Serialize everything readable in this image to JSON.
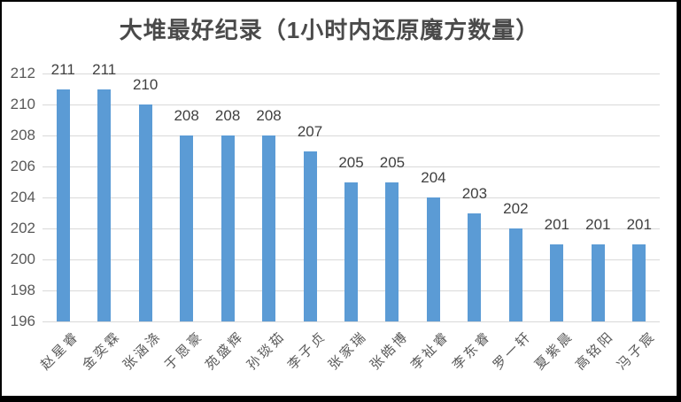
{
  "chart_data": {
    "type": "bar",
    "title": "大堆最好纪录（1小时内还原魔方数量）",
    "categories": [
      "赵星睿",
      "金奕霖",
      "张涵涤",
      "于恩豪",
      "苑盛辉",
      "孙琰茹",
      "李子贞",
      "张家瑞",
      "张皓博",
      "李祉睿",
      "李东睿",
      "罗一轩",
      "夏紫晨",
      "高铭阳",
      "冯子宸"
    ],
    "values": [
      211,
      211,
      210,
      208,
      208,
      208,
      207,
      205,
      205,
      204,
      203,
      202,
      201,
      201,
      201
    ],
    "data_labels": [
      211,
      211,
      210,
      208,
      208,
      208,
      207,
      205,
      205,
      204,
      203,
      202,
      201,
      201,
      201
    ],
    "yticks": [
      196,
      198,
      200,
      202,
      204,
      206,
      208,
      210,
      212
    ],
    "ylim": [
      196,
      212
    ],
    "xlabel": "",
    "ylabel": "",
    "grid": true,
    "legend": false,
    "x_label_rotation_deg": 45,
    "colors": {
      "bar": "#5b9bd5",
      "gridline": "#d9d9d9",
      "axis_label": "#595959",
      "data_label": "#404040",
      "title": "#4a4a4a",
      "frame_border": "#000000",
      "background": "#ffffff"
    }
  }
}
